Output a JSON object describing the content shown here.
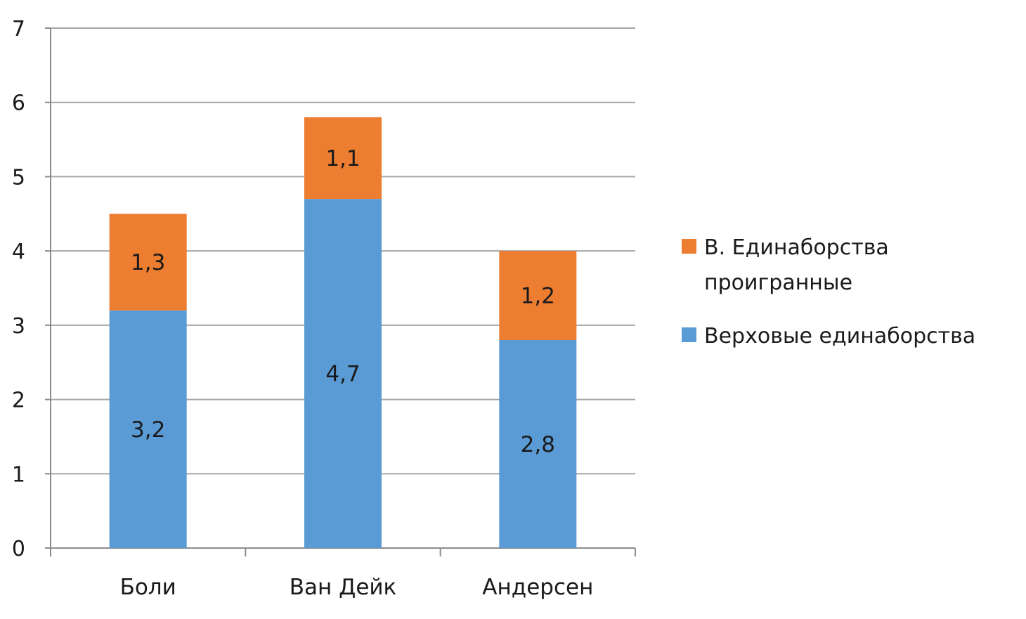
{
  "chart_data": {
    "type": "bar",
    "stacked": true,
    "categories": [
      "Боли",
      "Ван Дейк",
      "Андерсен"
    ],
    "series": [
      {
        "name": "Верховые единаборства",
        "values": [
          3.2,
          4.7,
          2.8
        ],
        "labels": [
          "3,2",
          "4,7",
          "2,8"
        ],
        "color": "#5B9BD5"
      },
      {
        "name": "В. Единаборства проигранные",
        "values": [
          1.3,
          1.1,
          1.2
        ],
        "labels": [
          "1,3",
          "1,1",
          "1,2"
        ],
        "color": "#ED7D31"
      }
    ],
    "ylim": [
      0,
      7
    ],
    "yticks": [
      "0",
      "1",
      "2",
      "3",
      "4",
      "5",
      "6",
      "7"
    ],
    "grid": true,
    "legend_position": "right",
    "legend_entries": [
      {
        "lines": [
          "В. Единаборства",
          "проигранные"
        ],
        "color": "#ED7D31"
      },
      {
        "lines": [
          "Верховые  единаборства"
        ],
        "color": "#5B9BD5"
      }
    ],
    "gridline_color": "#a6a6a6",
    "axis_color": "#8c8c8c"
  }
}
